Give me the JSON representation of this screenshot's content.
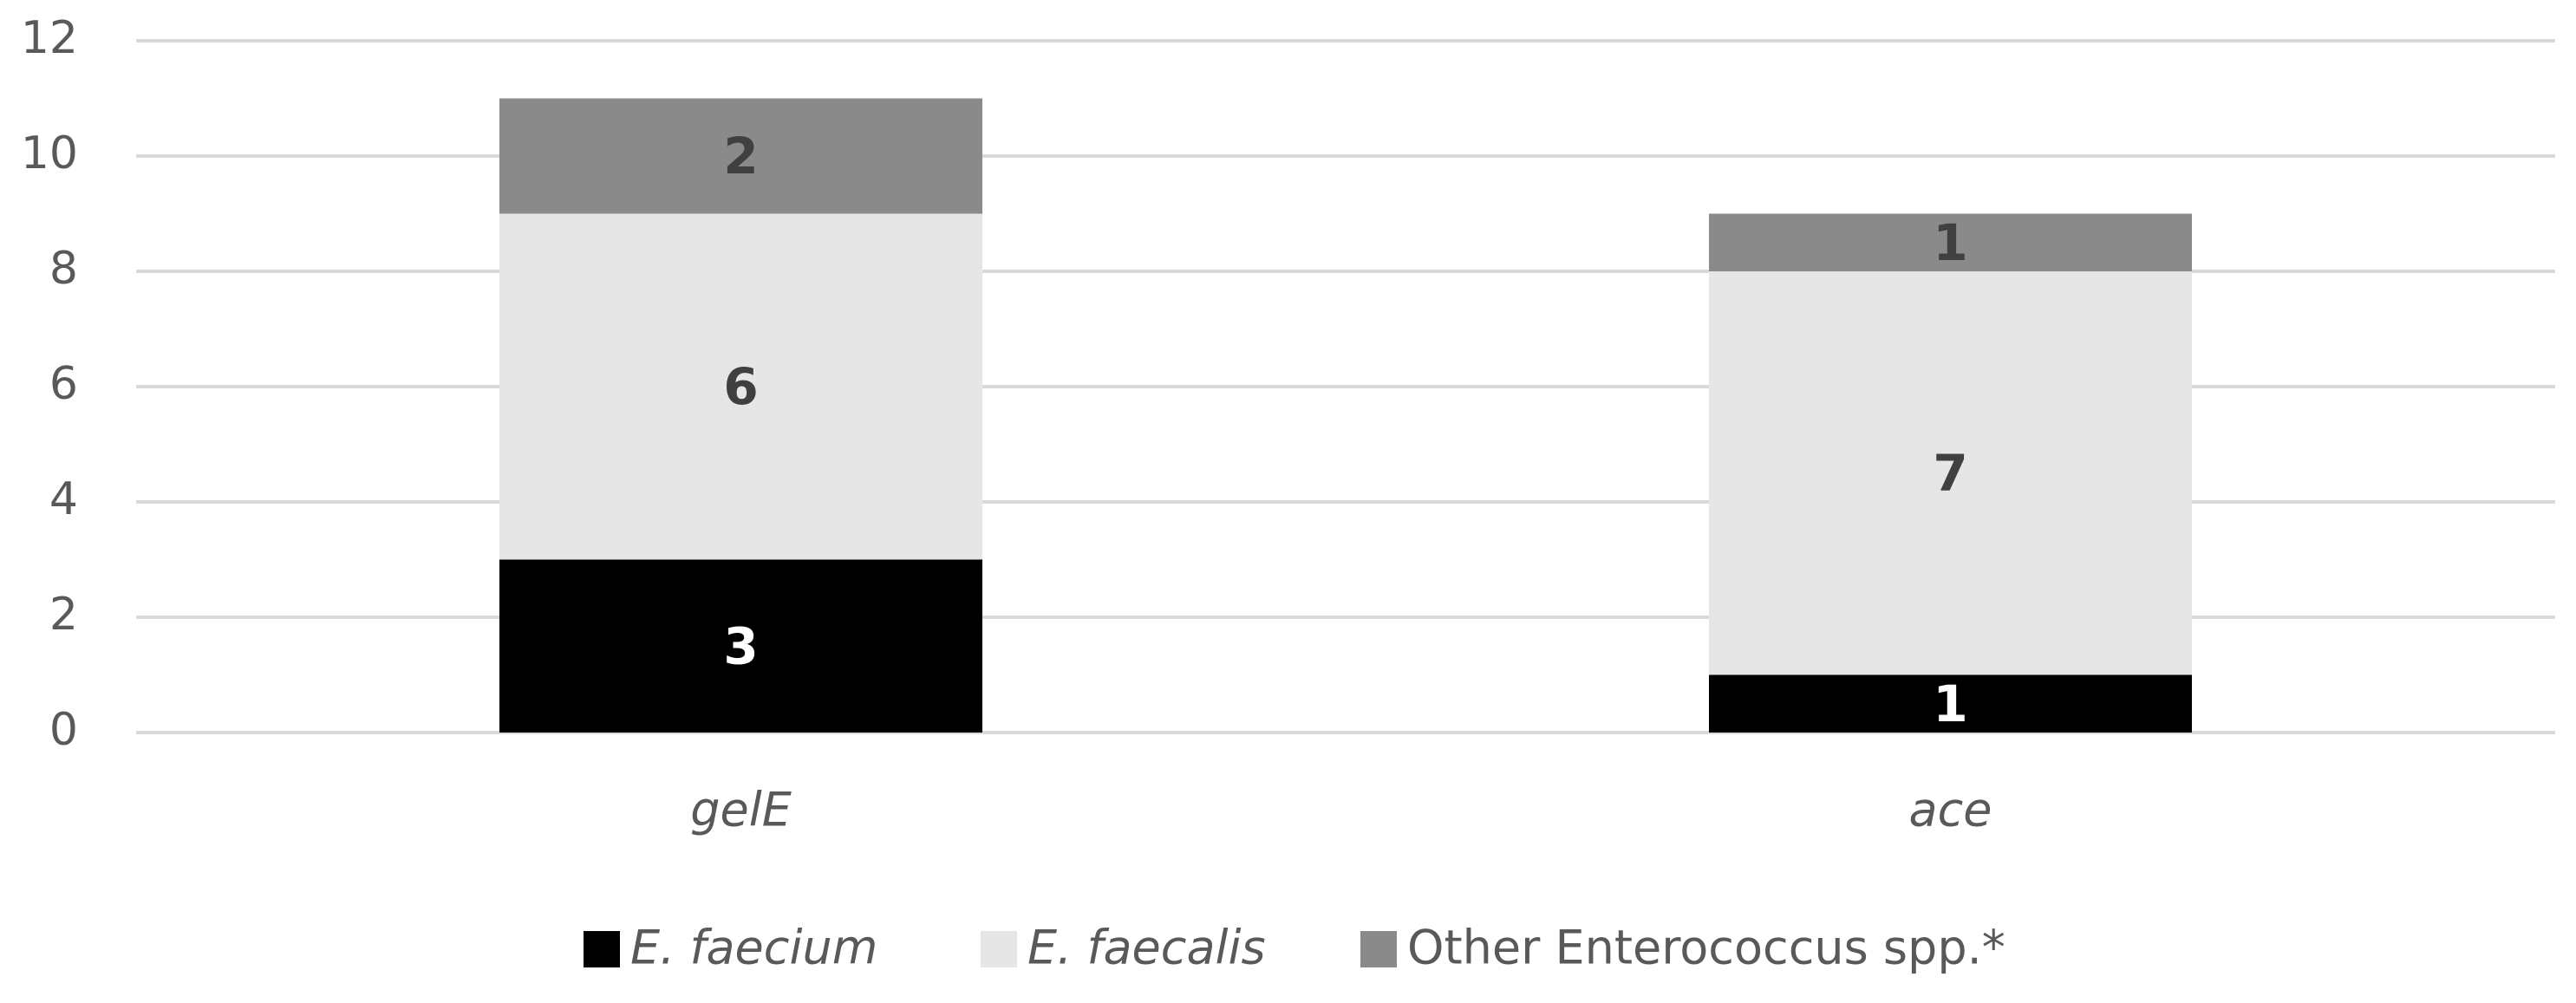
{
  "chart_data": {
    "type": "stacked_bar",
    "categories": [
      "gelE",
      "ace"
    ],
    "series": [
      {
        "name": "E. faecium",
        "color": "#000000",
        "values": [
          3,
          1
        ]
      },
      {
        "name": "E. faecalis",
        "color": "#e6e6e6",
        "values": [
          6,
          7
        ]
      },
      {
        "name": "Other Enterococcus spp.*",
        "color": "#8a8a8a",
        "values": [
          2,
          1
        ]
      }
    ],
    "ylim": [
      0,
      12
    ],
    "yticks": [
      0,
      2,
      4,
      6,
      8,
      10,
      12
    ],
    "grid": true,
    "legend": "bottom"
  }
}
